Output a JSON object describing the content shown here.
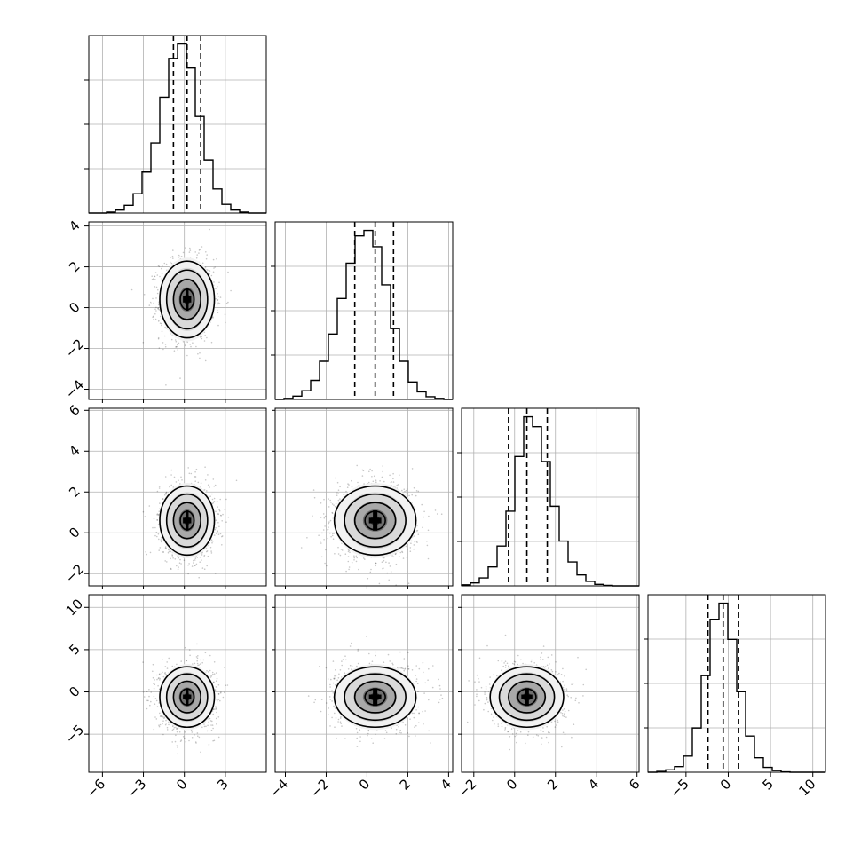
{
  "chart_data": {
    "type": "corner",
    "grid": true,
    "n_params": 4,
    "params": [
      {
        "range": [
          -7.0,
          6.0
        ],
        "ticks": [
          -6,
          -3,
          0,
          3
        ],
        "tick_labels": [
          "−6",
          "−3",
          "0",
          "3"
        ],
        "mean": 0.2,
        "sd": 1.0,
        "quantiles": [
          -0.8,
          0.2,
          1.2
        ]
      },
      {
        "range": [
          -4.5,
          4.2
        ],
        "ticks": [
          -4,
          -2,
          0,
          2,
          4
        ],
        "tick_labels": [
          "−4",
          "−2",
          "0",
          "2",
          "4"
        ],
        "mean": 0.4,
        "sd": 1.0,
        "quantiles": [
          -0.6,
          0.4,
          1.3
        ]
      },
      {
        "range": [
          -2.6,
          6.1
        ],
        "ticks": [
          -2,
          0,
          2,
          4,
          6
        ],
        "tick_labels": [
          "−2",
          "0",
          "2",
          "4",
          "6"
        ],
        "mean": 0.6,
        "sd": 0.9,
        "quantiles": [
          -0.3,
          0.6,
          1.6
        ]
      },
      {
        "range": [
          -9.5,
          11.5
        ],
        "ticks": [
          -5,
          0,
          5,
          10
        ],
        "tick_labels": [
          "−5",
          "0",
          "5",
          "10"
        ],
        "mean": -0.6,
        "sd": 1.9,
        "quantiles": [
          -2.4,
          -0.6,
          1.2
        ]
      }
    ],
    "histograms": [
      {
        "param": 0,
        "bins": [
          -7.0,
          -6.35,
          -5.7,
          -5.05,
          -4.4,
          -3.75,
          -3.1,
          -2.45,
          -1.8,
          -1.15,
          -0.5,
          0.15,
          0.8,
          1.45,
          2.1,
          2.75,
          3.4,
          4.05,
          4.7,
          5.35,
          6.0
        ],
        "counts": [
          0,
          0,
          2,
          6,
          16,
          40,
          85,
          145,
          240,
          320,
          350,
          300,
          200,
          110,
          50,
          18,
          6,
          2,
          0,
          0
        ]
      },
      {
        "param": 1,
        "bins": [
          -4.5,
          -4.065,
          -3.63,
          -3.195,
          -2.76,
          -2.325,
          -1.89,
          -1.455,
          -1.02,
          -0.585,
          -0.15,
          0.285,
          0.72,
          1.155,
          1.59,
          2.025,
          2.46,
          2.895,
          3.33,
          3.765,
          4.2
        ],
        "counts": [
          0,
          2,
          6,
          16,
          35,
          70,
          120,
          185,
          250,
          300,
          310,
          280,
          210,
          130,
          70,
          32,
          14,
          5,
          2,
          0
        ]
      },
      {
        "param": 2,
        "bins": [
          -2.6,
          -2.165,
          -1.73,
          -1.295,
          -0.86,
          -0.425,
          0.01,
          0.445,
          0.88,
          1.315,
          1.75,
          2.185,
          2.62,
          3.055,
          3.49,
          3.925,
          4.36,
          4.795,
          5.23,
          5.665,
          6.1
        ],
        "counts": [
          2,
          6,
          16,
          38,
          80,
          150,
          260,
          340,
          320,
          250,
          160,
          90,
          48,
          22,
          9,
          3,
          1,
          0,
          0,
          0
        ]
      },
      {
        "param": 3,
        "bins": [
          -9.5,
          -8.45,
          -7.4,
          -6.35,
          -5.3,
          -4.25,
          -3.2,
          -2.15,
          -1.1,
          -0.05,
          1.0,
          2.05,
          3.1,
          4.15,
          5.2,
          6.25,
          7.3,
          8.35,
          9.4,
          10.45,
          11.5
        ],
        "counts": [
          0,
          2,
          6,
          14,
          40,
          110,
          240,
          380,
          420,
          330,
          200,
          90,
          36,
          12,
          4,
          1,
          0,
          0,
          0,
          0
        ]
      }
    ],
    "pairs": [
      {
        "x": 0,
        "y": 1,
        "center": [
          0.2,
          0.4
        ],
        "spread": [
          1.0,
          1.0
        ]
      },
      {
        "x": 0,
        "y": 2,
        "center": [
          0.2,
          0.6
        ],
        "spread": [
          1.0,
          0.9
        ]
      },
      {
        "x": 1,
        "y": 2,
        "center": [
          0.4,
          0.6
        ],
        "spread": [
          1.0,
          0.9
        ]
      },
      {
        "x": 0,
        "y": 3,
        "center": [
          0.2,
          -0.6
        ],
        "spread": [
          1.0,
          1.9
        ]
      },
      {
        "x": 1,
        "y": 3,
        "center": [
          0.4,
          -0.6
        ],
        "spread": [
          1.0,
          1.9
        ]
      },
      {
        "x": 2,
        "y": 3,
        "center": [
          0.6,
          -0.6
        ],
        "spread": [
          0.9,
          1.9
        ]
      }
    ],
    "contour_levels_sigma": [
      0.5,
      1.0,
      1.5,
      2.0
    ]
  }
}
